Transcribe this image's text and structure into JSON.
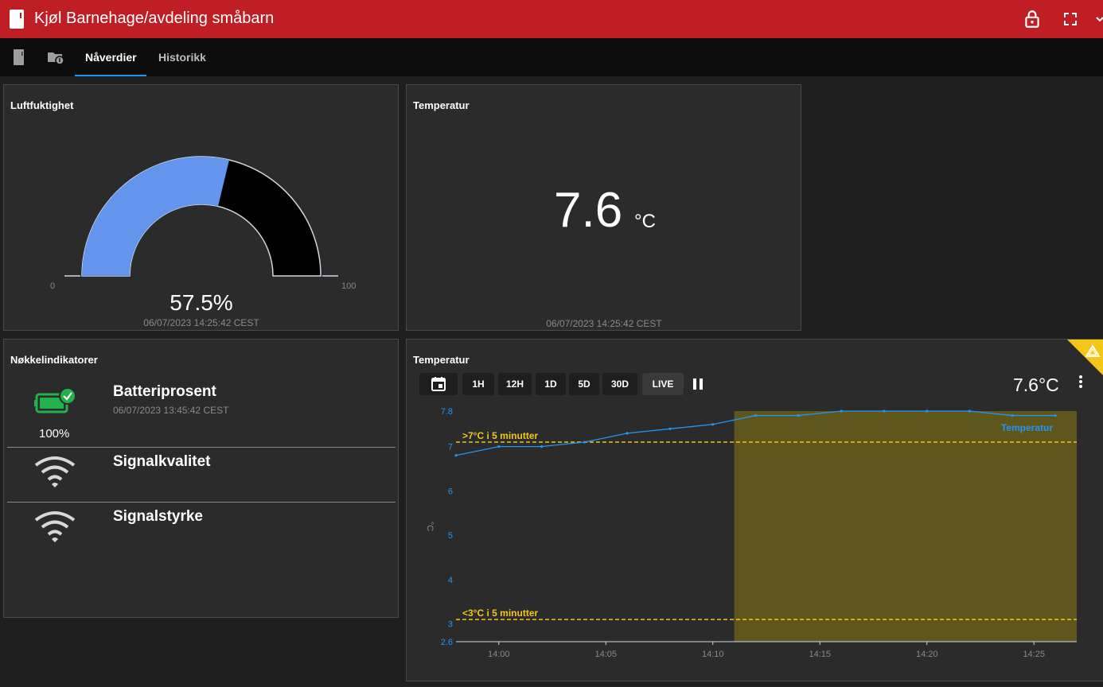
{
  "header": {
    "title": "Kjøl Barnehage/avdeling småbarn",
    "brand_color": "#be1e24"
  },
  "tabs": [
    {
      "label": "Nåverdier",
      "active": true
    },
    {
      "label": "Historikk",
      "active": false
    }
  ],
  "humidity_card": {
    "title": "Luftfuktighet",
    "value": "57.5%",
    "level": 57.5,
    "min_label": "0",
    "max_label": "100",
    "timestamp": "06/07/2023 14:25:42 CEST",
    "fill_color": "#6495ed"
  },
  "temperature_card": {
    "title": "Temperatur",
    "value": "7.6",
    "unit": "°C",
    "timestamp": "06/07/2023 14:25:42 CEST"
  },
  "key_indicators": {
    "title": "Nøkkelindikatorer",
    "items": [
      {
        "name": "Batteriprosent",
        "timestamp": "06/07/2023 13:45:42 CEST",
        "value": "100%",
        "icon": "battery-check-icon"
      },
      {
        "name": "Signalkvalitet",
        "icon": "wifi-icon"
      },
      {
        "name": "Signalstyrke",
        "icon": "wifi-icon"
      }
    ]
  },
  "temperature_chart": {
    "title": "Temperatur",
    "current_value": "7.6°C",
    "range_buttons": [
      "1H",
      "12H",
      "1D",
      "5D",
      "30D",
      "LIVE"
    ],
    "series_color": "#2196f3",
    "threshold_color": "#f5c518",
    "highlight_color": "#5f561e"
  },
  "chart_data": {
    "type": "line",
    "ylabel": "°C",
    "ylim": [
      2.6,
      7.8
    ],
    "yticks": [
      "2.6",
      "3",
      "4",
      "5",
      "6",
      "7",
      "7.8"
    ],
    "xticks": [
      "14:00",
      "14:05",
      "14:10",
      "14:15",
      "14:20",
      "14:25"
    ],
    "xlim": [
      "13:58",
      "14:27"
    ],
    "series": [
      {
        "name": "Temperatur",
        "x": [
          "13:58",
          "14:00",
          "14:02",
          "14:04",
          "14:06",
          "14:08",
          "14:10",
          "14:12",
          "14:14",
          "14:16",
          "14:18",
          "14:20",
          "14:22",
          "14:24",
          "14:26"
        ],
        "values": [
          6.8,
          7.0,
          7.0,
          7.1,
          7.3,
          7.4,
          7.5,
          7.7,
          7.7,
          7.8,
          7.8,
          7.8,
          7.8,
          7.7,
          7.7
        ]
      }
    ],
    "thresholds": [
      {
        "label": ">7°C i 5 minutter",
        "value": 7.1
      },
      {
        "label": "<3°C i 5 minutter",
        "value": 3.1
      }
    ],
    "highlight_from": "14:11"
  }
}
